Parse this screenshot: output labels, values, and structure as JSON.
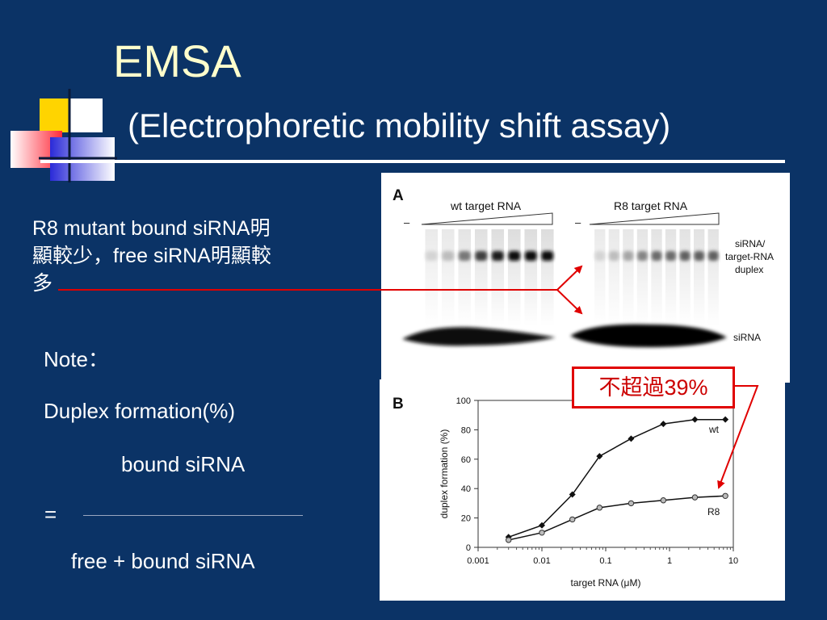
{
  "slide": {
    "title": "EMSA",
    "subtitle": "(Electrophoretic mobility shift assay)",
    "description_lines": [
      "R8 mutant bound siRNA明",
      "顯較少，free siRNA明顯較",
      "多"
    ],
    "note_label": "Note：",
    "formula_label": "Duplex formation(%)",
    "numerator": "bound siRNA",
    "equals": "=",
    "denominator": "free + bound siRNA",
    "callout": "不超過39%"
  },
  "gel": {
    "panel_label": "A",
    "wt_label": "wt target RNA",
    "r8_label": "R8 target RNA",
    "dash": "–",
    "duplex_label_lines": [
      "siRNA/",
      "target-RNA",
      "duplex"
    ],
    "free_label": "siRNA",
    "wt_duplex_intensity": [
      0.1,
      0.2,
      0.5,
      0.75,
      0.9,
      0.95,
      0.95,
      0.95
    ],
    "r8_duplex_intensity": [
      0.1,
      0.2,
      0.3,
      0.45,
      0.55,
      0.55,
      0.6,
      0.6,
      0.6
    ]
  },
  "chart_data": {
    "type": "line",
    "panel_label": "B",
    "xlabel": "target RNA (μM)",
    "ylabel": "duplex formation (%)",
    "x_scale": "log",
    "xlim": [
      0.001,
      10
    ],
    "ylim": [
      0,
      100
    ],
    "x_ticks": [
      "0.001",
      "0.01",
      "0.1",
      "1",
      "10"
    ],
    "y_ticks": [
      "0",
      "20",
      "40",
      "60",
      "80",
      "100"
    ],
    "grid": false,
    "series": [
      {
        "name": "wt",
        "marker": "diamond",
        "color": "#000000",
        "x": [
          0.003,
          0.01,
          0.03,
          0.08,
          0.25,
          0.8,
          2.5,
          7.5
        ],
        "y": [
          7,
          15,
          36,
          62,
          74,
          84,
          87,
          87
        ]
      },
      {
        "name": "R8",
        "marker": "circle",
        "color": "#888888",
        "x": [
          0.003,
          0.01,
          0.03,
          0.08,
          0.25,
          0.8,
          2.5,
          7.5
        ],
        "y": [
          5,
          10,
          19,
          27,
          30,
          32,
          34,
          35
        ]
      }
    ]
  }
}
